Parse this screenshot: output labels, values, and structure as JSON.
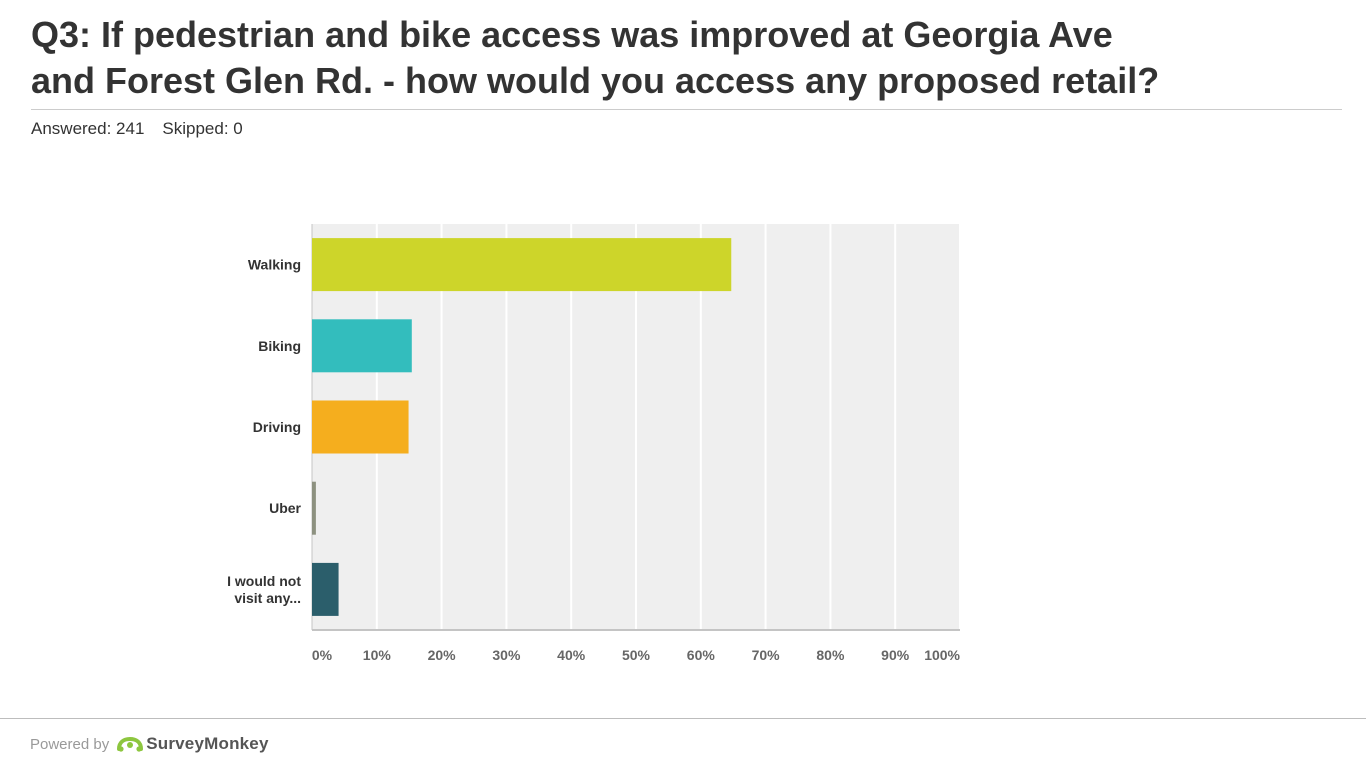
{
  "header": {
    "title_line1": "Q3: If pedestrian and bike access was improved at Georgia Ave",
    "title_line2": "and Forest Glen Rd. - how would you access any proposed retail?",
    "answered_label": "Answered: 241",
    "skipped_label": "Skipped: 0"
  },
  "footer": {
    "powered_by": "Powered by",
    "brand": "SurveyMonkey",
    "logo_icon": "surveymonkey-logo-icon"
  },
  "chart_data": {
    "type": "bar",
    "orientation": "horizontal",
    "categories": [
      "Walking",
      "Biking",
      "Driving",
      "Uber",
      "I would not visit any..."
    ],
    "values": [
      64.7,
      15.4,
      14.9,
      0.6,
      4.1
    ],
    "unit": "%",
    "xlim": [
      0,
      100
    ],
    "xticks": [
      "0%",
      "10%",
      "20%",
      "30%",
      "40%",
      "50%",
      "60%",
      "70%",
      "80%",
      "90%",
      "100%"
    ],
    "colors": [
      "#cdd52a",
      "#33bdbd",
      "#f5ae1e",
      "#8d9180",
      "#2b5e6b"
    ],
    "grid": true,
    "background": "#efefef",
    "legend": "none"
  }
}
